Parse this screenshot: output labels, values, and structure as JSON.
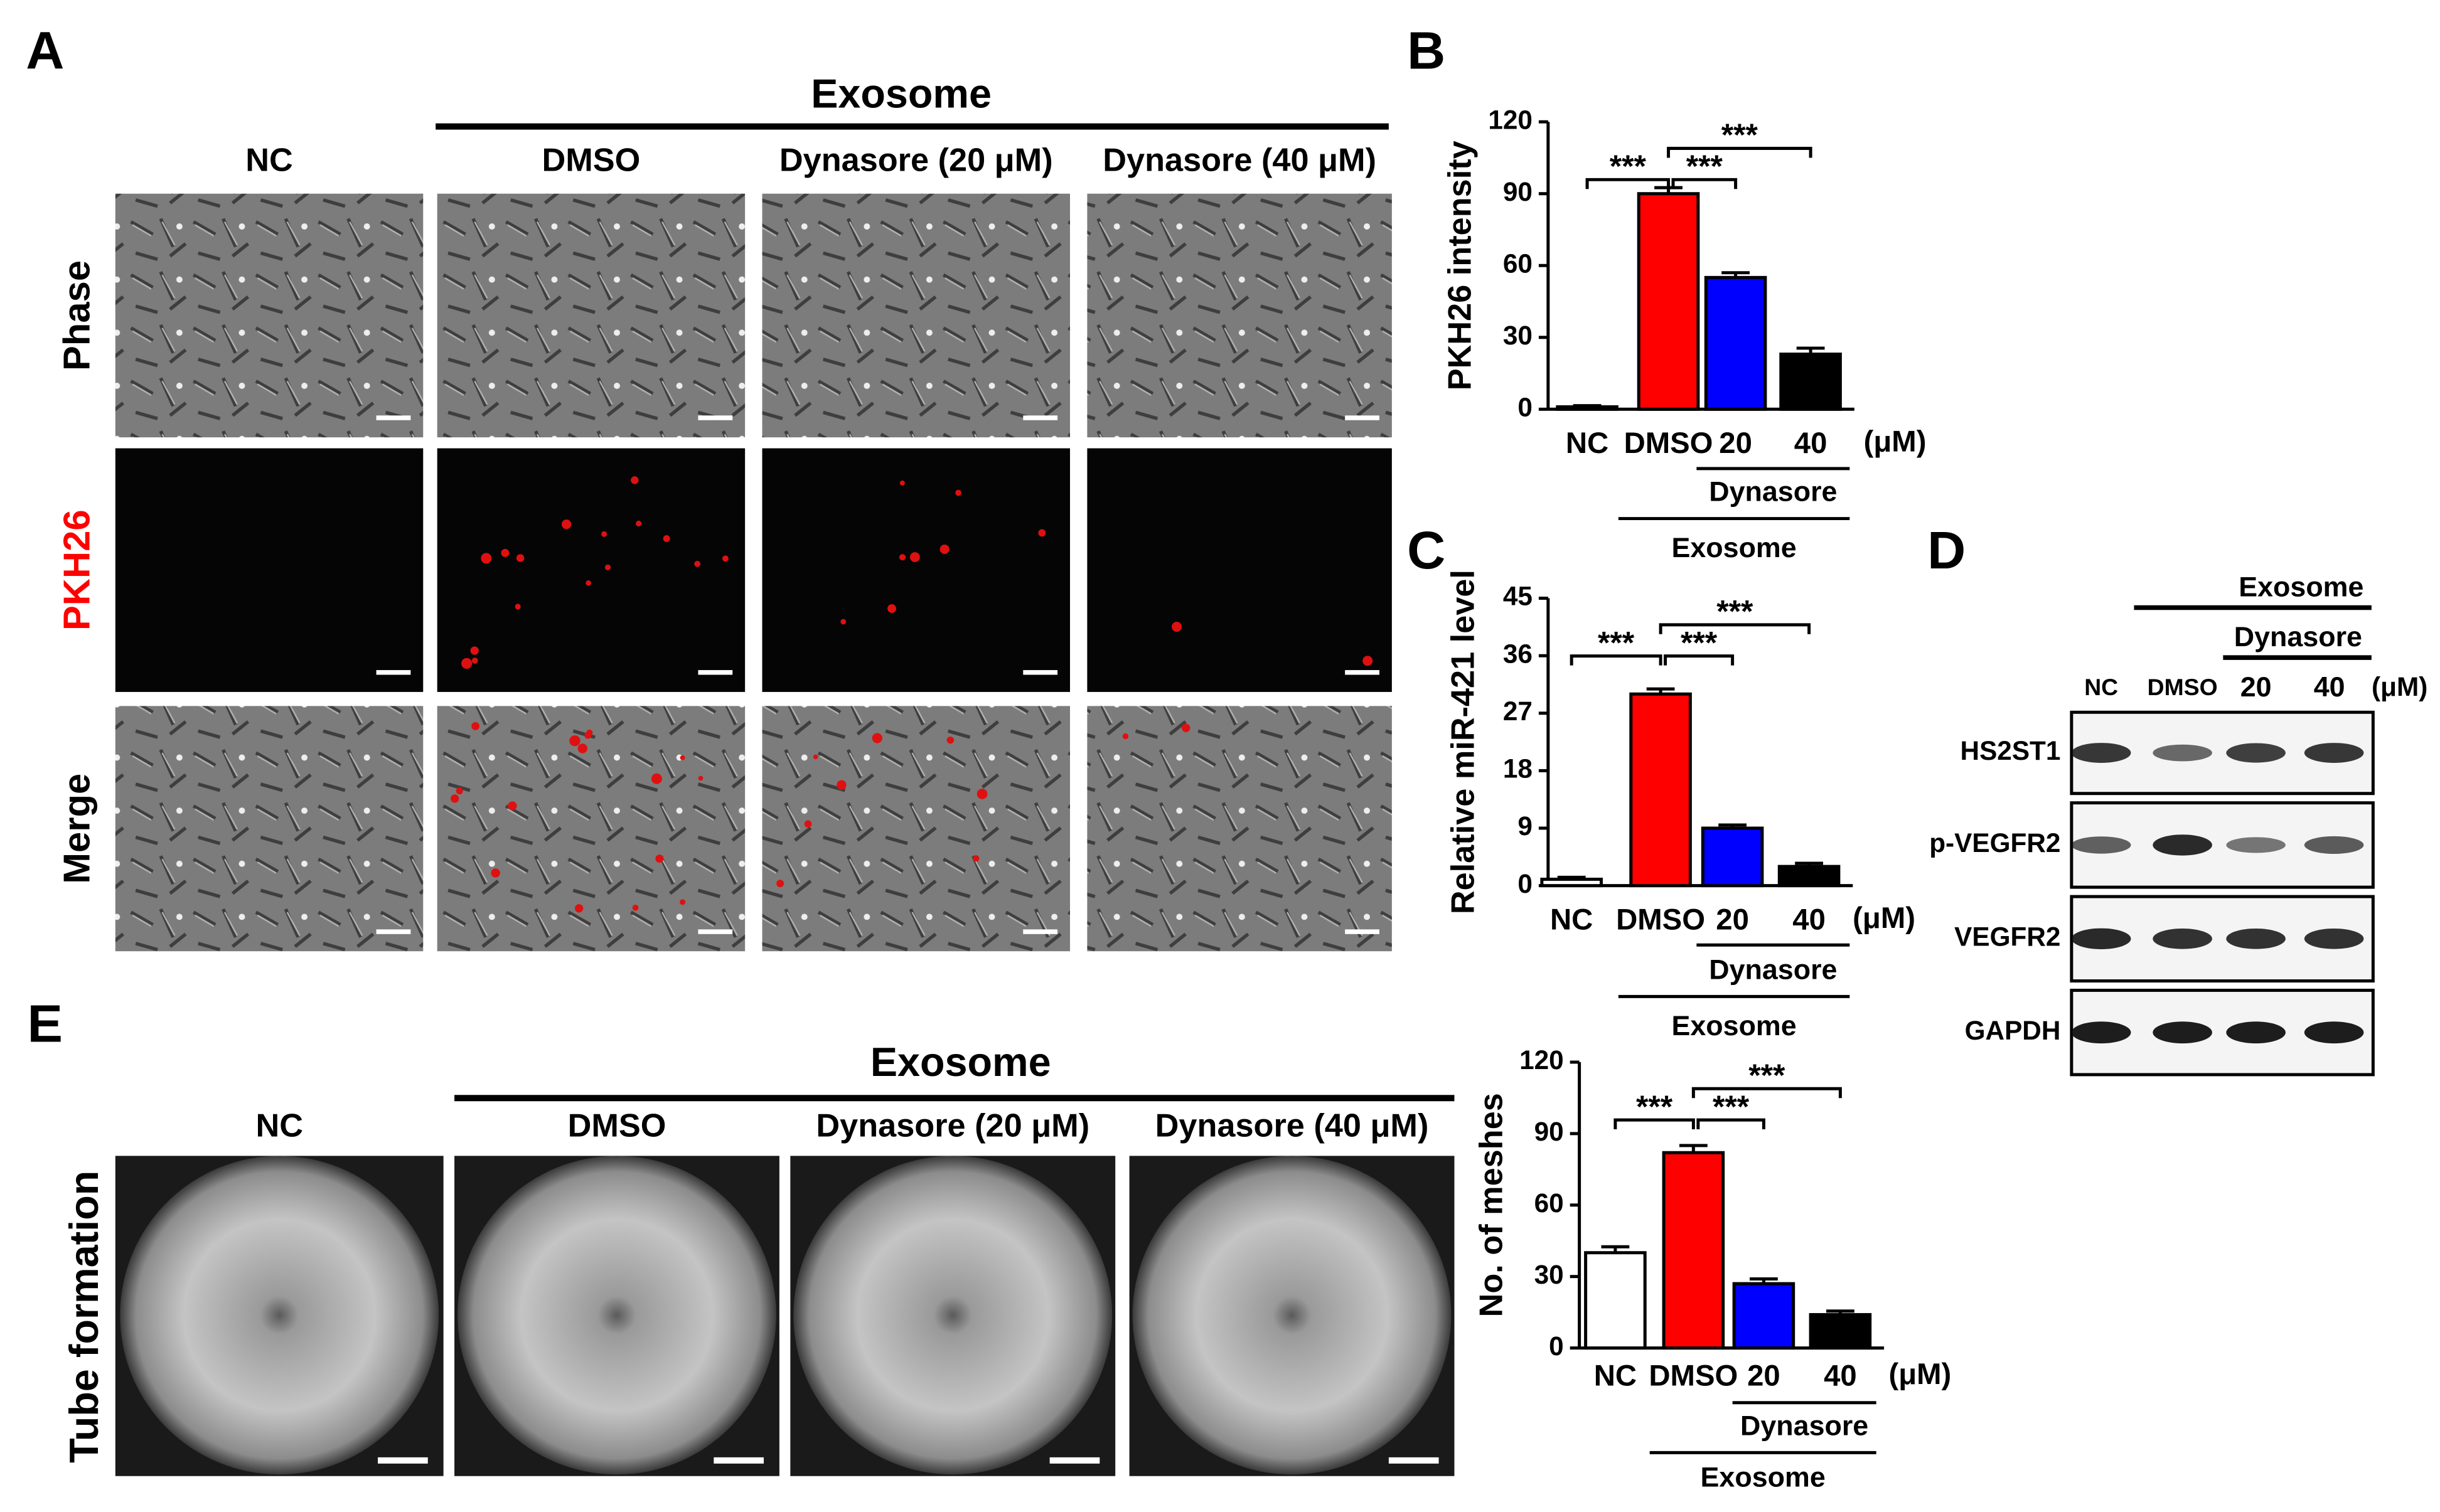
{
  "panel_labels": [
    "A",
    "B",
    "C",
    "D",
    "E"
  ],
  "panel_a": {
    "group_label": "Exosome",
    "columns": [
      "NC",
      "DMSO",
      "Dynasore (20 μM)",
      "Dynasore (40 μM)"
    ],
    "rows": [
      "Phase",
      "PKH26",
      "Merge"
    ]
  },
  "panel_d": {
    "group_label": "Exosome",
    "subgroup_label": "Dynasore",
    "lanes": [
      "NC",
      "DMSO",
      "20",
      "40"
    ],
    "unit_label": "(μM)",
    "rows": [
      "HS2ST1",
      "p-VEGFR2",
      "VEGFR2",
      "GAPDH"
    ]
  },
  "panel_e": {
    "group_label": "Exosome",
    "columns": [
      "NC",
      "DMSO",
      "Dynasore (20 μM)",
      "Dynasore (40 μM)"
    ],
    "row_label": "Tube formation"
  },
  "chart_data": [
    {
      "type": "bar",
      "y_label": "PKH26 intensity",
      "categories": [
        "NC",
        "DMSO",
        "20",
        "40"
      ],
      "unit_label": "(μM)",
      "subgroup_label": "Dynasore",
      "group_label": "Exosome",
      "values": [
        1,
        90,
        55,
        23
      ],
      "errors": [
        0.5,
        2.5,
        2,
        2.5
      ],
      "colors": [
        "#ffffff",
        "#ff0000",
        "#0000ff",
        "#000000"
      ],
      "ylim": [
        0,
        120
      ],
      "yticks": [
        0,
        30,
        60,
        90,
        120
      ],
      "significance": [
        "***",
        "***",
        "***"
      ]
    },
    {
      "type": "bar",
      "y_label": "Relative miR-421 level",
      "categories": [
        "NC",
        "DMSO",
        "20",
        "40"
      ],
      "unit_label": "(μM)",
      "subgroup_label": "Dynasore",
      "group_label": "Exosome",
      "values": [
        1,
        30,
        9,
        3
      ],
      "errors": [
        0.3,
        0.8,
        0.5,
        0.5
      ],
      "colors": [
        "#ffffff",
        "#ff0000",
        "#0000ff",
        "#000000"
      ],
      "ylim": [
        0,
        45
      ],
      "yticks": [
        0,
        9,
        18,
        27,
        36,
        45
      ],
      "significance": [
        "***",
        "***",
        "***"
      ]
    },
    {
      "type": "bar",
      "y_label": "No. of meshes",
      "categories": [
        "NC",
        "DMSO",
        "20",
        "40"
      ],
      "unit_label": "(μM)",
      "subgroup_label": "Dynasore",
      "group_label": "Exosome",
      "values": [
        40,
        82,
        27,
        14
      ],
      "errors": [
        2.5,
        3,
        2,
        1.5
      ],
      "colors": [
        "#ffffff",
        "#ff0000",
        "#0000ff",
        "#000000"
      ],
      "ylim": [
        0,
        120
      ],
      "yticks": [
        0,
        30,
        60,
        90,
        120
      ],
      "significance": [
        "***",
        "***",
        "***"
      ]
    }
  ]
}
